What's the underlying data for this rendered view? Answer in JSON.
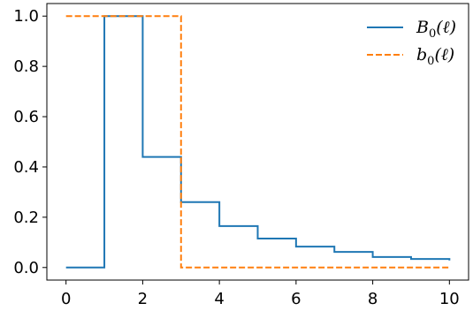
{
  "chart_data": {
    "type": "line",
    "title": "",
    "xlabel": "",
    "ylabel": "",
    "xlim": [
      -0.5,
      10.5
    ],
    "ylim": [
      -0.05,
      1.05
    ],
    "xticks": [
      0,
      2,
      4,
      6,
      8,
      10
    ],
    "xtick_labels": [
      "0",
      "2",
      "4",
      "6",
      "8",
      "10"
    ],
    "yticks": [
      0.0,
      0.2,
      0.4,
      0.6,
      0.8,
      1.0
    ],
    "ytick_labels": [
      "0.0",
      "0.2",
      "0.4",
      "0.6",
      "0.8",
      "1.0"
    ],
    "grid": false,
    "legend_position": "top-right",
    "step_where": "post",
    "series": [
      {
        "name": "B0(ℓ)",
        "legend_main": "B",
        "legend_sub": "0",
        "legend_arg": "(ℓ)",
        "color": "#1f77b4",
        "style": "solid",
        "x": [
          0,
          1,
          2,
          3,
          4,
          5,
          6,
          7,
          8,
          9,
          10
        ],
        "y": [
          0.0,
          1.0,
          0.44,
          0.26,
          0.165,
          0.115,
          0.083,
          0.062,
          0.042,
          0.034,
          0.028
        ]
      },
      {
        "name": "b0(ℓ)",
        "legend_main": "b",
        "legend_sub": "0",
        "legend_arg": "(ℓ)",
        "color": "#ff7f0e",
        "style": "dashed",
        "x": [
          0,
          1,
          2,
          3,
          4,
          5,
          6,
          7,
          8,
          9,
          10
        ],
        "y": [
          1.0,
          1.0,
          1.0,
          0.0,
          0.0,
          0.0,
          0.0,
          0.0,
          0.0,
          0.0,
          0.0
        ]
      }
    ]
  }
}
